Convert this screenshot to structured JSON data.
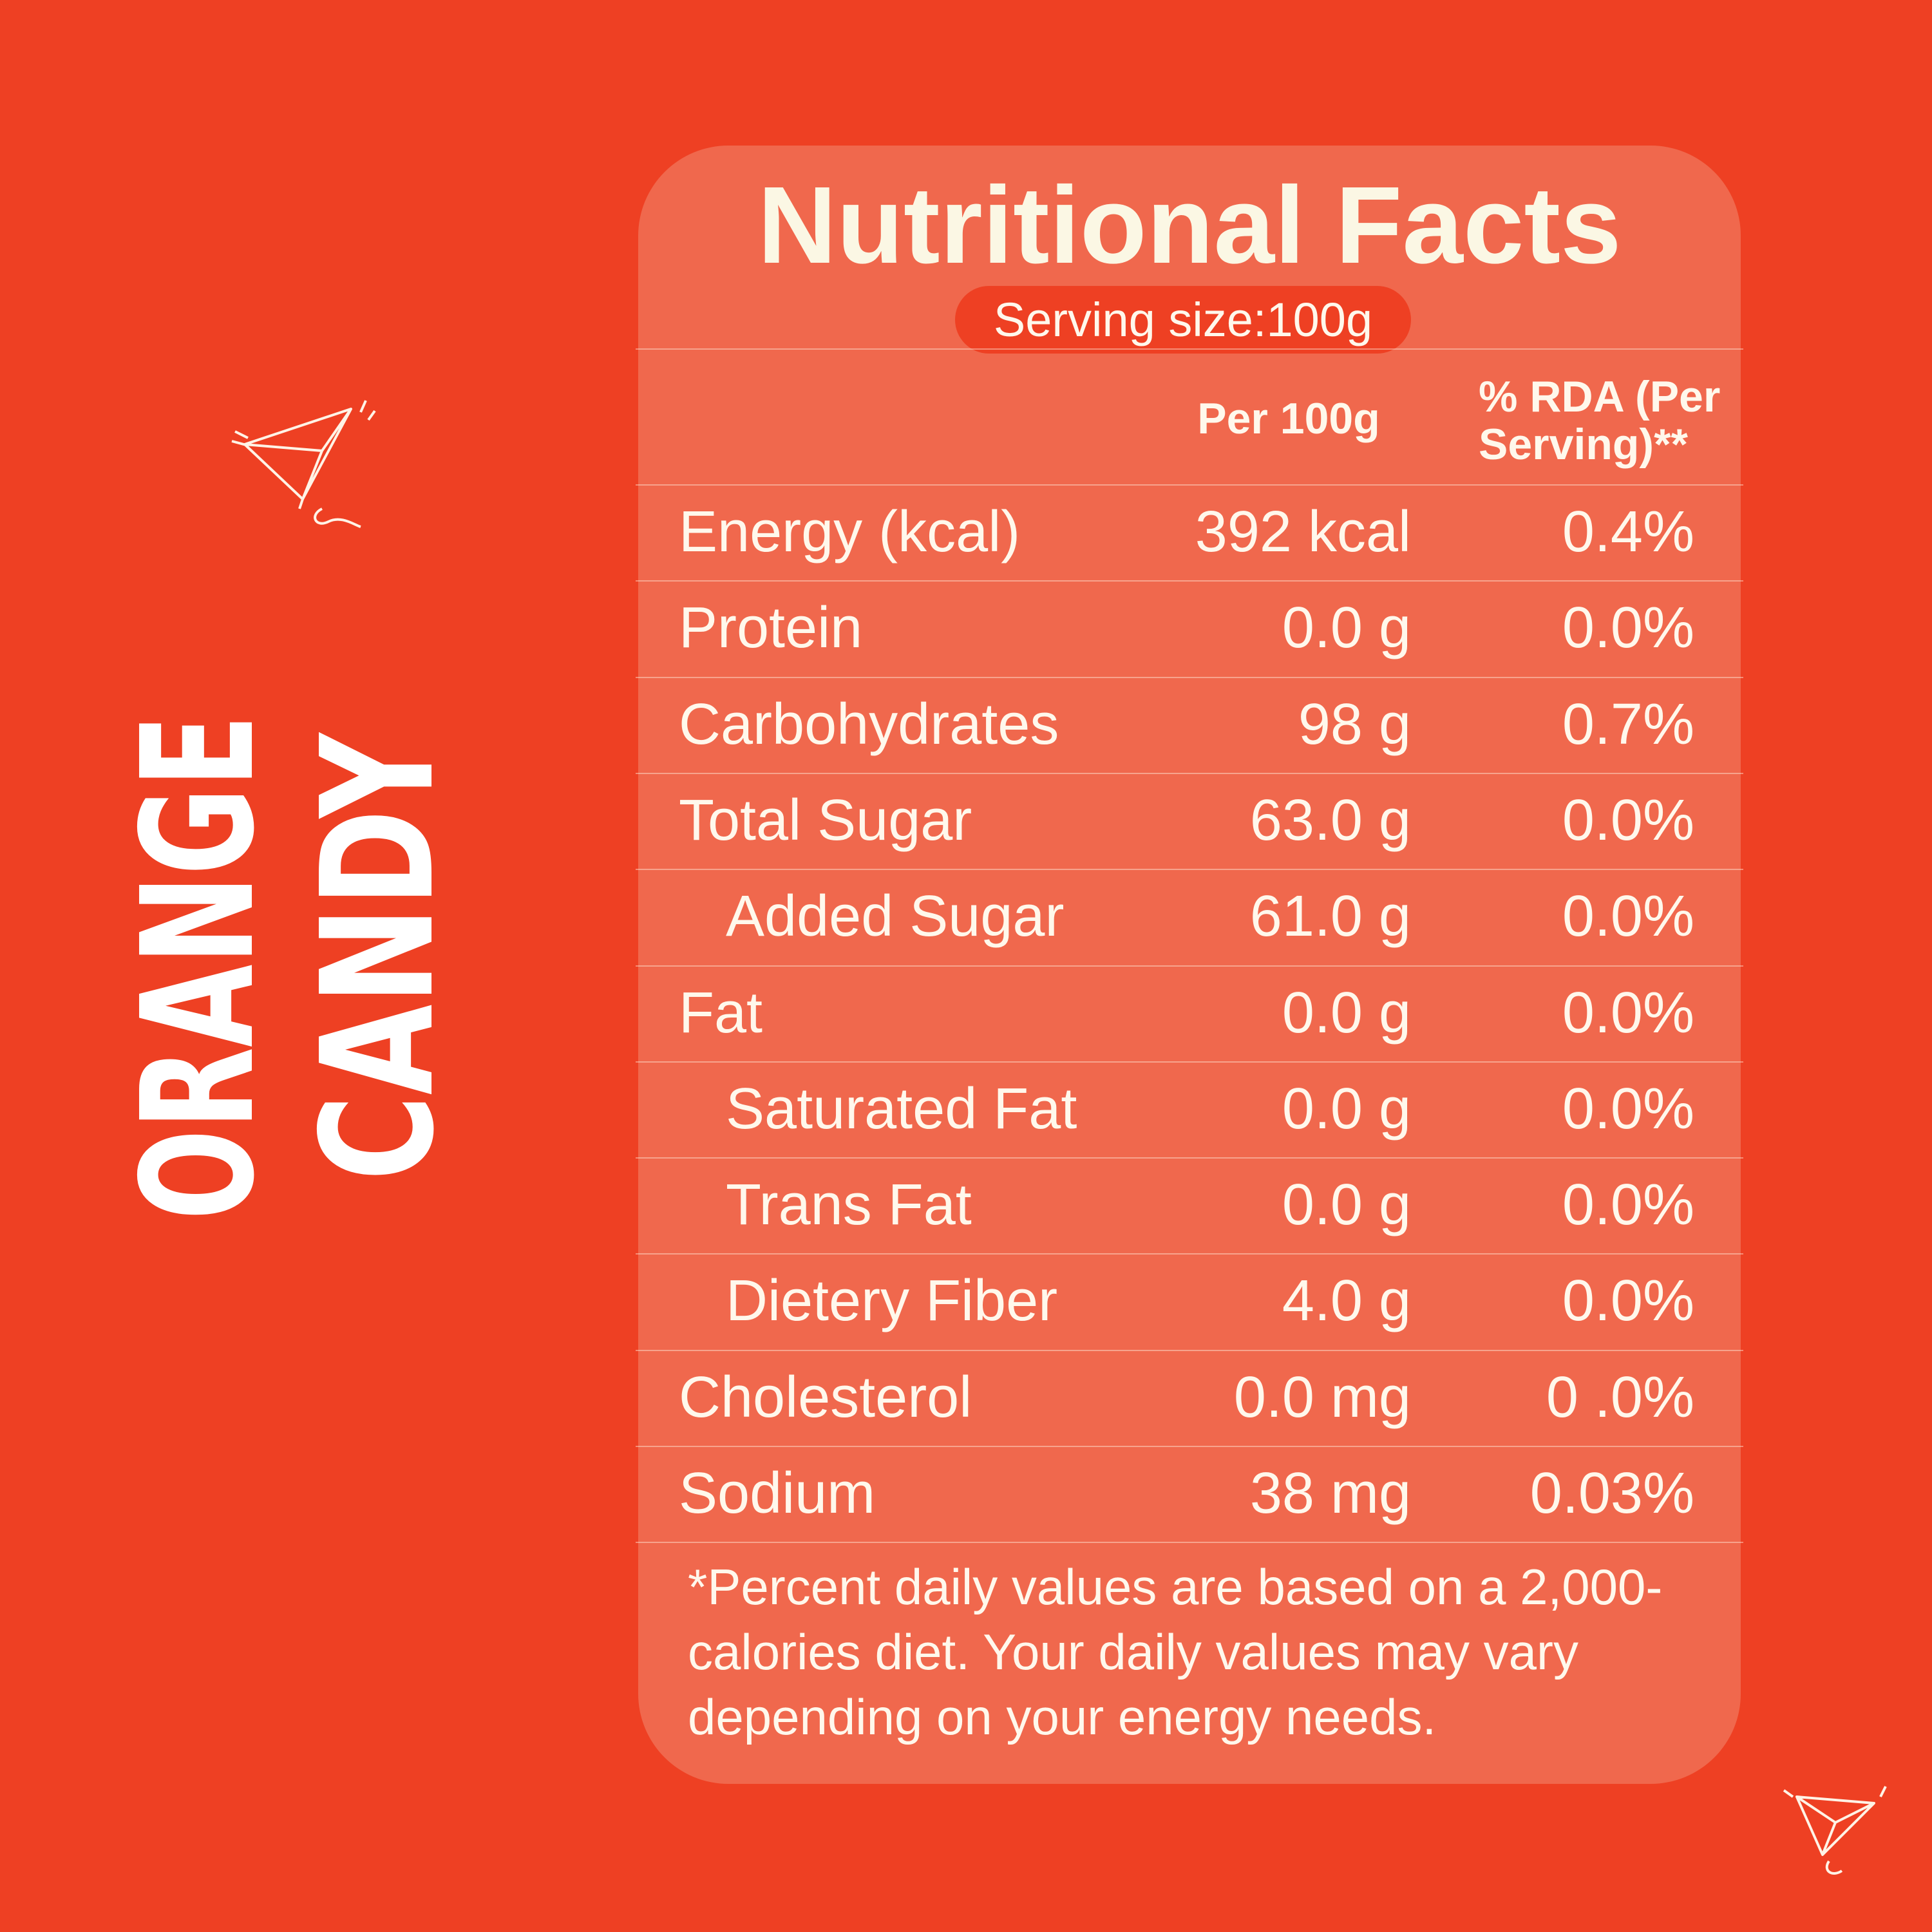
{
  "brand": {
    "lines": [
      "ORANGE",
      "CANDY"
    ]
  },
  "panel": {
    "title": "Nutritional Facts",
    "serving_size": "Serving size:100g",
    "columns": [
      "Per 100g",
      "% RDA (Per",
      "Serving)**"
    ],
    "rows": [
      [
        "Energy (kcal)",
        "392 kcal",
        "0.4%"
      ],
      [
        "Protein",
        "0.0 g",
        "0.0%"
      ],
      [
        "Carbohydrates",
        "98 g",
        "0.7%"
      ],
      [
        "Total Sugar",
        "63.0 g",
        "0.0%"
      ],
      [
        "Added Sugar",
        "61.0 g",
        "0.0%"
      ],
      [
        "Fat",
        "0.0 g",
        "0.0%"
      ],
      [
        "Saturated Fat",
        "0.0 g",
        "0.0%"
      ],
      [
        "Trans Fat",
        "0.0 g",
        "0.0%"
      ],
      [
        "Dietery Fiber",
        "4.0 g",
        "0.0%"
      ],
      [
        "Cholesterol",
        "0.0 mg",
        "0 .0%"
      ],
      [
        "Sodium",
        "38 mg",
        "0.03%"
      ]
    ],
    "footnote": [
      "*Percent daily values are based on a 2,000-",
      "calories diet. Your daily values may vary",
      "depending on your energy needs."
    ]
  }
}
